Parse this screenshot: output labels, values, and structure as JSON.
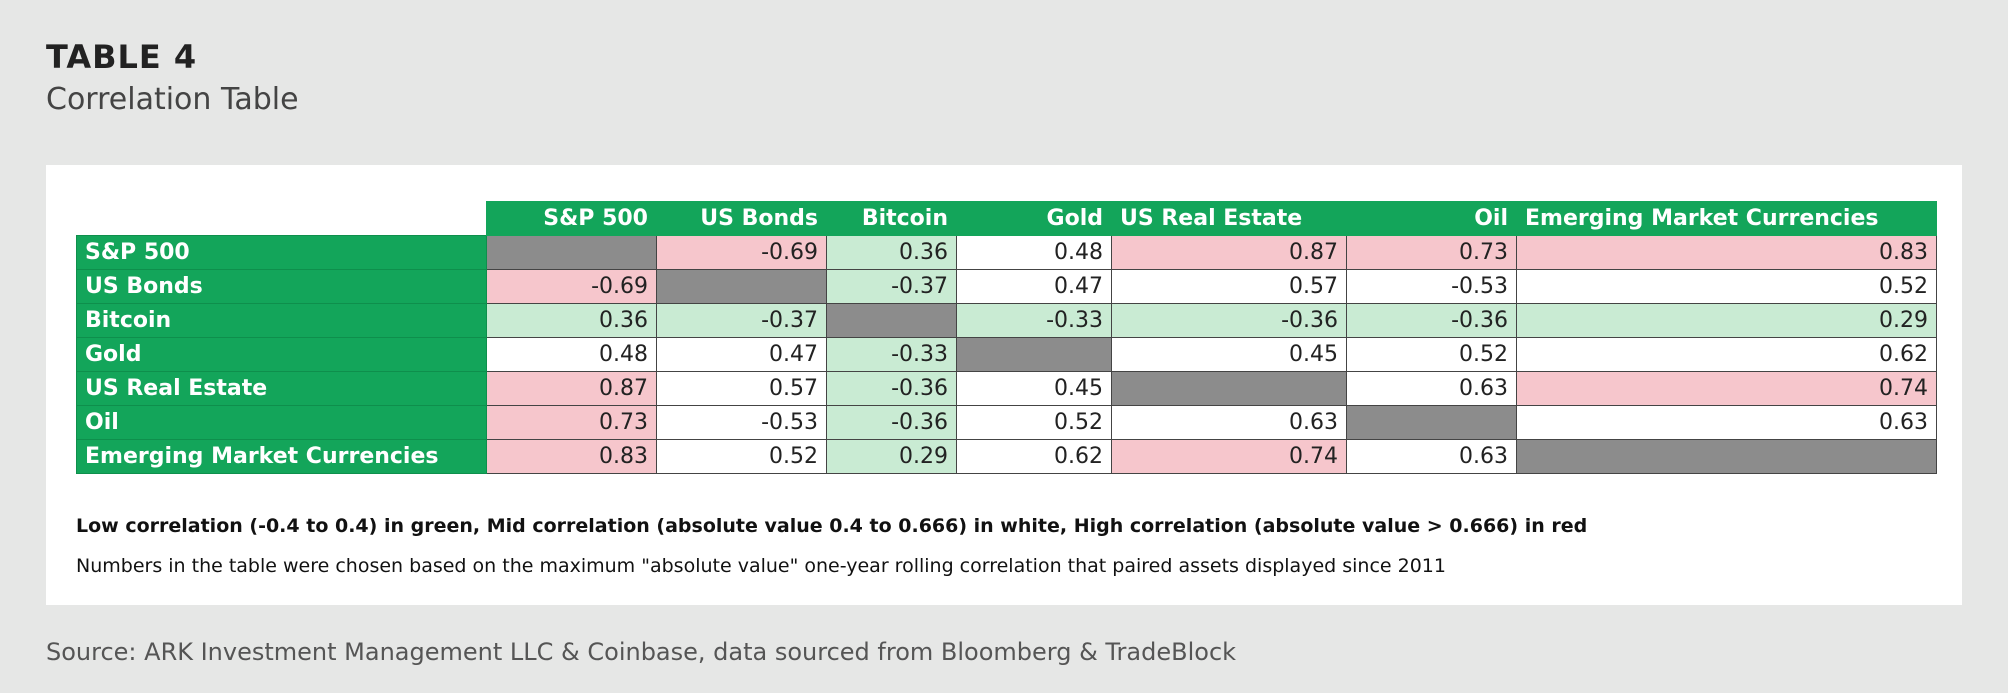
{
  "header": {
    "title": "TABLE 4",
    "subtitle": "Correlation Table"
  },
  "chart_data": {
    "type": "table",
    "columns": [
      "S&P 500",
      "US Bonds",
      "Bitcoin",
      "Gold",
      "US Real Estate",
      "Oil",
      "Emerging Market Currencies"
    ],
    "rows": [
      {
        "label": "S&P 500",
        "values": [
          null,
          -0.69,
          0.36,
          0.48,
          0.87,
          0.73,
          0.83
        ]
      },
      {
        "label": "US Bonds",
        "values": [
          -0.69,
          null,
          -0.37,
          0.47,
          0.57,
          -0.53,
          0.52
        ]
      },
      {
        "label": "Bitcoin",
        "values": [
          0.36,
          -0.37,
          null,
          -0.33,
          -0.36,
          -0.36,
          0.29
        ]
      },
      {
        "label": "Gold",
        "values": [
          0.48,
          0.47,
          -0.33,
          null,
          0.45,
          0.52,
          0.62
        ]
      },
      {
        "label": "US Real Estate",
        "values": [
          0.87,
          0.57,
          -0.36,
          0.45,
          null,
          0.63,
          0.74
        ]
      },
      {
        "label": "Oil",
        "values": [
          0.73,
          -0.53,
          -0.36,
          0.52,
          0.63,
          null,
          0.63
        ]
      },
      {
        "label": "Emerging Market Currencies",
        "values": [
          0.83,
          0.52,
          0.29,
          0.62,
          0.74,
          0.63,
          null
        ]
      }
    ],
    "color_key": {
      "low": "#c9ebd3",
      "mid": "#ffffff",
      "high": "#f6c6cc",
      "diagonal": "#8c8c8c",
      "header": "#13a55a"
    }
  },
  "notes": {
    "legend": "Low correlation (-0.4 to 0.4) in green, Mid correlation (absolute value 0.4 to 0.666) in white, High correlation (absolute value > 0.666) in red",
    "method": "Numbers in the table were chosen based on the maximum \"absolute value\" one-year rolling correlation that paired assets displayed since 2011"
  },
  "source": "Source: ARK Investment Management LLC & Coinbase, data sourced from Bloomberg & TradeBlock"
}
